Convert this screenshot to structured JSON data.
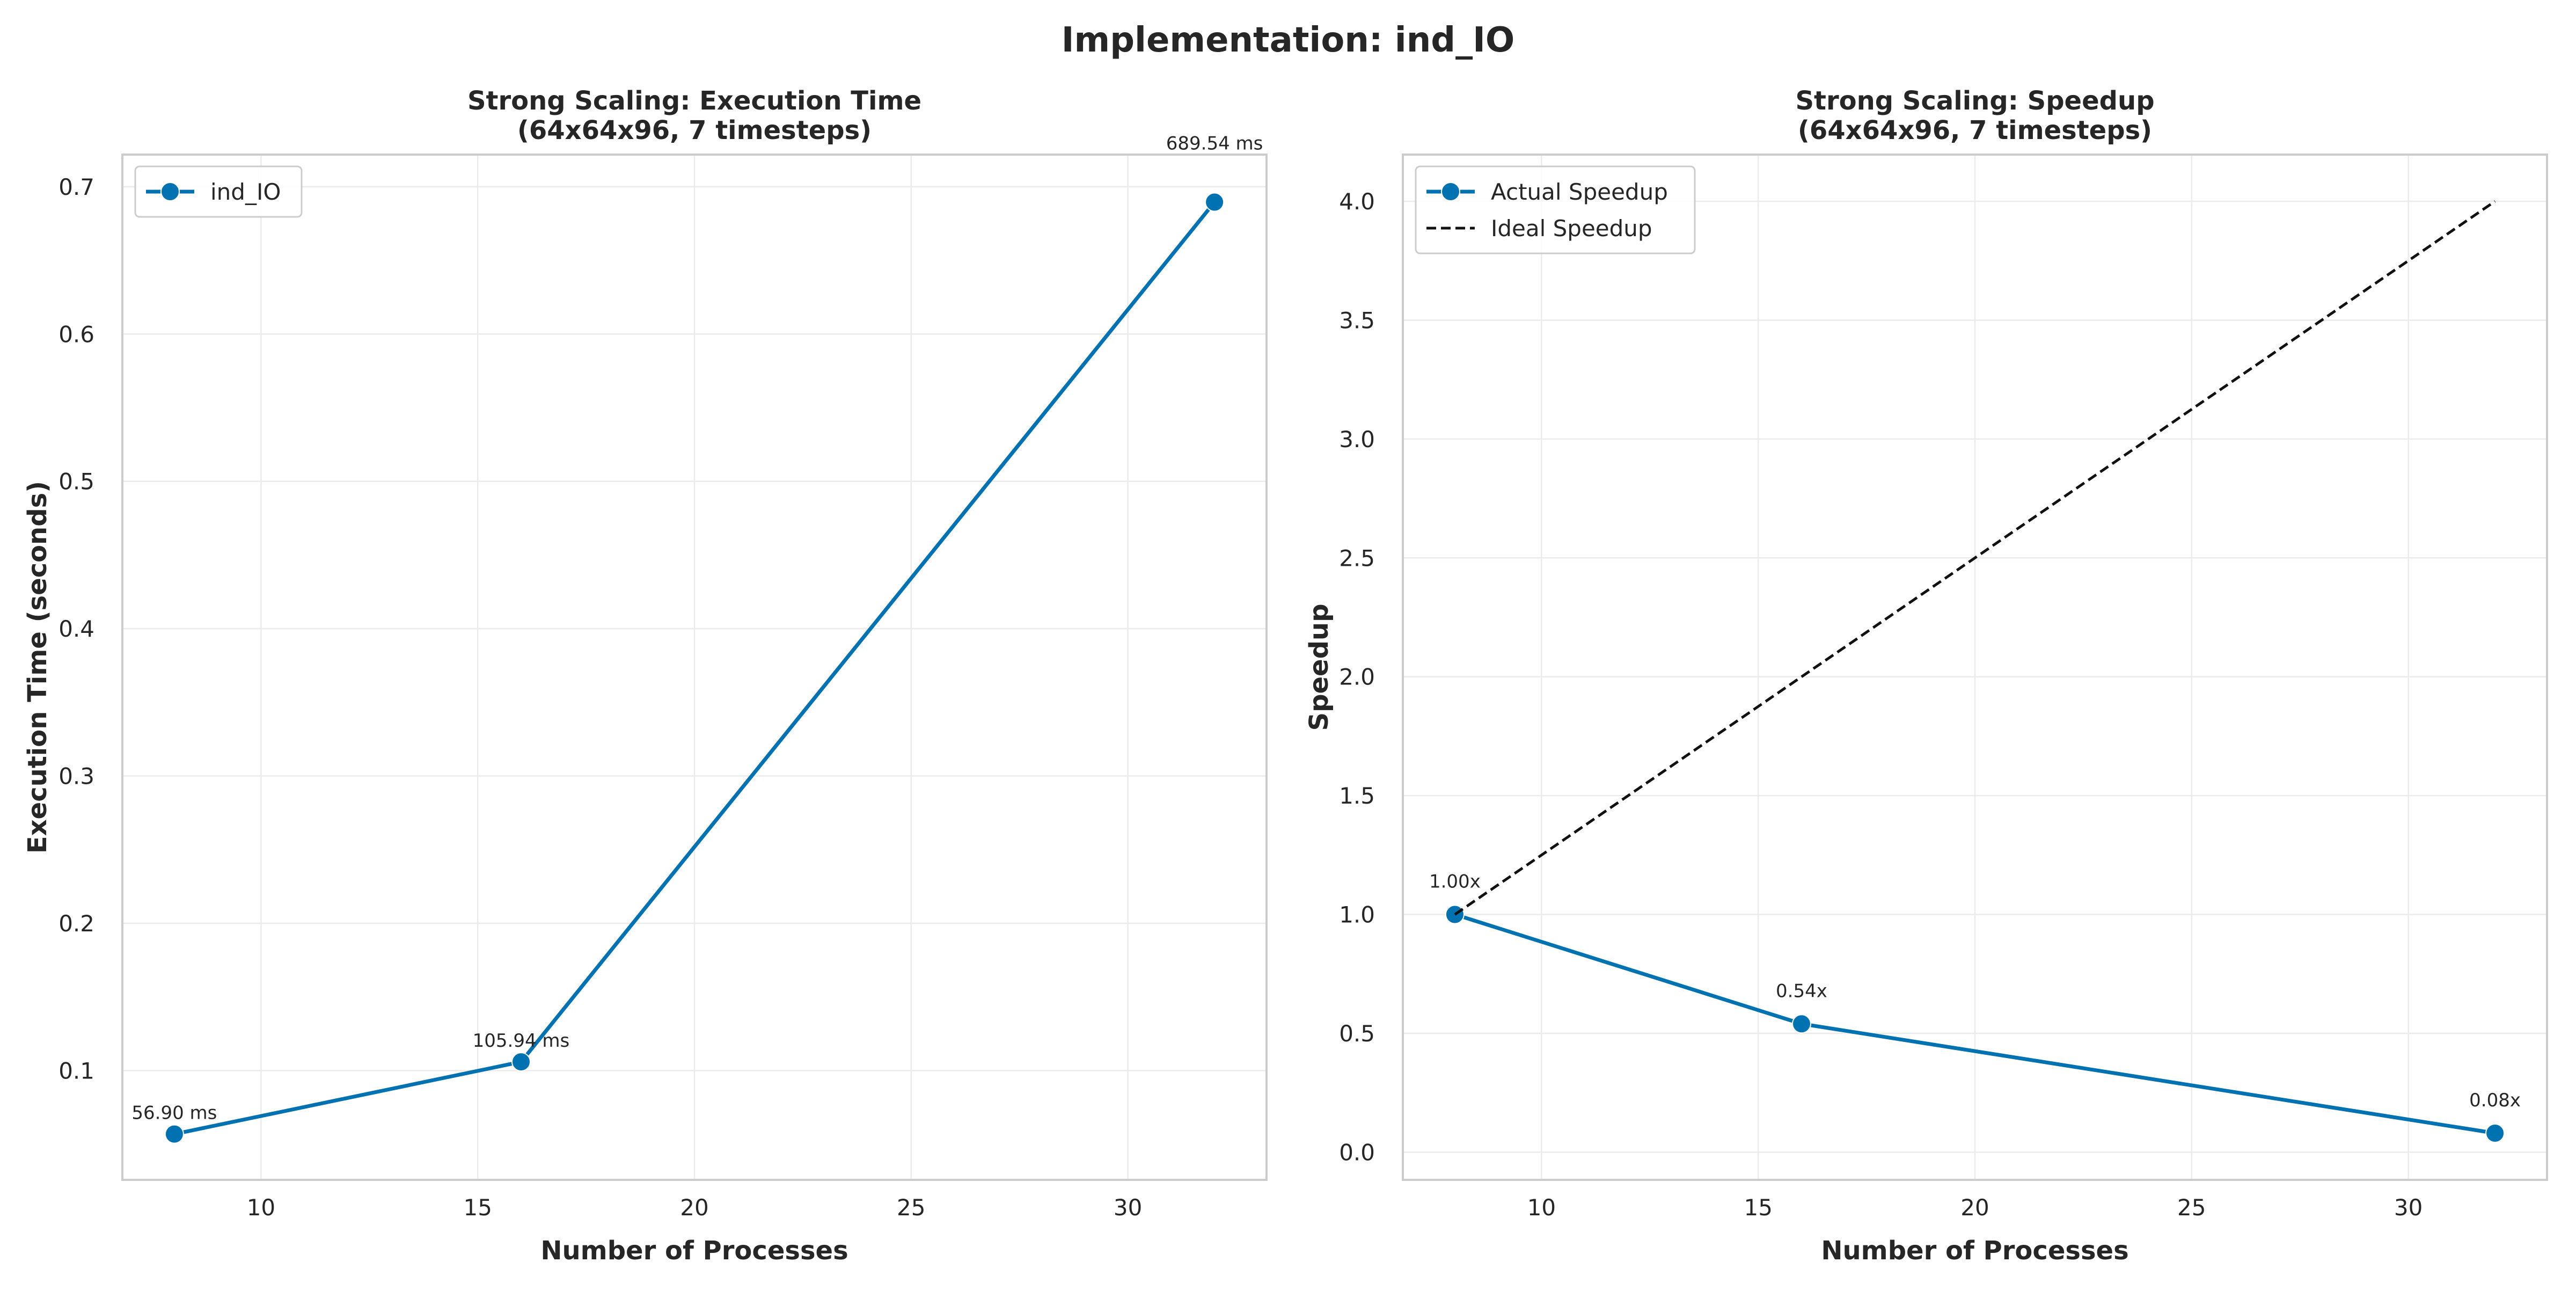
{
  "figure": {
    "title": "Implementation: ind_IO"
  },
  "chart_data": [
    {
      "type": "line",
      "title": "Strong Scaling: Execution Time\n(64x64x96, 7 timesteps)",
      "xlabel": "Number of Processes",
      "ylabel": "Execution Time (seconds)",
      "xlim": [
        6.8,
        33.2
      ],
      "ylim": [
        0.0258,
        0.7218
      ],
      "xticks": [
        10,
        15,
        20,
        25,
        30
      ],
      "yticks": [
        0.1,
        0.2,
        0.3,
        0.4,
        0.5,
        0.6,
        0.7
      ],
      "grid": true,
      "legend_position": "upper-left",
      "series": [
        {
          "name": "ind_IO",
          "style": "solid-marker",
          "color": "#0072b2",
          "x": [
            8,
            16,
            32
          ],
          "y": [
            0.0569,
            0.10594,
            0.68954
          ],
          "labels": [
            "56.90 ms",
            "105.94 ms",
            "689.54 ms"
          ]
        }
      ]
    },
    {
      "type": "line",
      "title": "Strong Scaling: Speedup\n(64x64x96, 7 timesteps)",
      "xlabel": "Number of Processes",
      "ylabel": "Speedup",
      "xlim": [
        6.8,
        33.2
      ],
      "ylim": [
        -0.1165,
        4.1965
      ],
      "xticks": [
        10,
        15,
        20,
        25,
        30
      ],
      "yticks": [
        0.0,
        0.5,
        1.0,
        1.5,
        2.0,
        2.5,
        3.0,
        3.5,
        4.0
      ],
      "grid": true,
      "legend_position": "upper-left",
      "series": [
        {
          "name": "Actual Speedup",
          "style": "solid-marker",
          "color": "#0072b2",
          "x": [
            8,
            16,
            32
          ],
          "y": [
            1.0,
            0.54,
            0.08
          ],
          "labels": [
            "1.00x",
            "0.54x",
            "0.08x"
          ]
        },
        {
          "name": "Ideal Speedup",
          "style": "dashed",
          "color": "#111111",
          "x": [
            8,
            16,
            32
          ],
          "y": [
            1.0,
            2.0,
            4.0
          ],
          "labels": []
        }
      ]
    }
  ]
}
